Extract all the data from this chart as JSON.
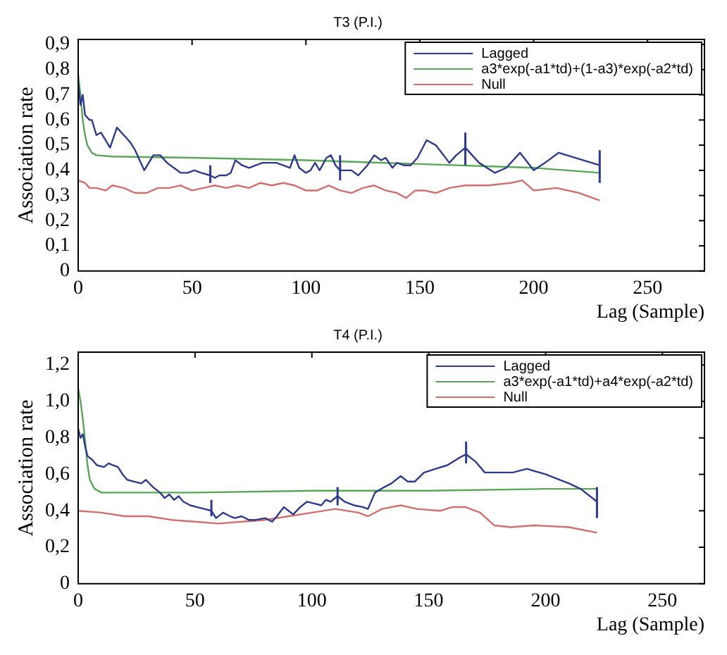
{
  "chart_data": [
    {
      "type": "line",
      "title": "T3 (P.I.)",
      "xlabel": "Lag (Sample)",
      "ylabel": "Association rate",
      "legend": "top right",
      "xlim": [
        0,
        275
      ],
      "xticks": [
        0,
        50,
        100,
        150,
        200,
        250
      ],
      "ylim": [
        0,
        0.92
      ],
      "yticks": [
        0,
        {
          "value": 0.1,
          "label": "0,1"
        },
        {
          "value": 0.2,
          "label": "0,2"
        },
        {
          "value": 0.3,
          "label": "0,3"
        },
        {
          "value": 0.4,
          "label": "0,4"
        },
        {
          "value": 0.5,
          "label": "0,5"
        },
        {
          "value": 0.6,
          "label": "0,6"
        },
        {
          "value": 0.7,
          "label": "0,7"
        },
        {
          "value": 0.8,
          "label": "0,8"
        },
        {
          "value": 0.9,
          "label": "0,9"
        }
      ],
      "series": [
        {
          "name": "Lagged",
          "color": "#2e3a8c",
          "x": [
            0,
            1,
            2,
            3,
            5,
            6,
            8,
            10,
            12,
            14,
            17,
            20,
            23,
            25,
            27,
            29,
            31,
            33,
            36,
            39,
            42,
            45,
            48,
            51,
            54,
            58,
            60,
            62,
            65,
            67,
            69,
            72,
            75,
            78,
            81,
            84,
            87,
            90,
            93,
            95,
            97,
            100,
            102,
            104,
            106,
            109,
            111,
            113,
            115,
            117,
            120,
            123,
            127,
            130,
            133,
            135,
            138,
            140,
            143,
            146,
            149,
            153,
            157,
            163,
            166,
            170,
            176,
            183,
            188,
            194,
            200,
            205,
            211,
            229
          ],
          "values": [
            0.75,
            0.66,
            0.7,
            0.62,
            0.6,
            0.6,
            0.54,
            0.55,
            0.52,
            0.49,
            0.57,
            0.54,
            0.51,
            0.48,
            0.44,
            0.4,
            0.43,
            0.46,
            0.46,
            0.43,
            0.41,
            0.39,
            0.39,
            0.4,
            0.39,
            0.38,
            0.37,
            0.38,
            0.38,
            0.39,
            0.44,
            0.42,
            0.41,
            0.42,
            0.43,
            0.43,
            0.43,
            0.42,
            0.41,
            0.46,
            0.41,
            0.39,
            0.4,
            0.43,
            0.4,
            0.45,
            0.46,
            0.42,
            0.4,
            0.4,
            0.4,
            0.38,
            0.42,
            0.46,
            0.44,
            0.45,
            0.41,
            0.43,
            0.42,
            0.42,
            0.45,
            0.52,
            0.5,
            0.43,
            0.46,
            0.49,
            0.43,
            0.39,
            0.41,
            0.47,
            0.4,
            0.43,
            0.47,
            0.42
          ],
          "errors": [
            null,
            null,
            null,
            null,
            null,
            null,
            null,
            null,
            null,
            null,
            null,
            null,
            null,
            null,
            null,
            null,
            null,
            null,
            null,
            null,
            null,
            null,
            null,
            null,
            null,
            [
              0.35,
              0.42
            ],
            null,
            null,
            null,
            null,
            null,
            null,
            null,
            null,
            null,
            null,
            null,
            null,
            null,
            null,
            null,
            null,
            null,
            null,
            null,
            null,
            null,
            null,
            [
              0.36,
              0.46
            ],
            null,
            null,
            null,
            null,
            null,
            null,
            null,
            null,
            null,
            null,
            null,
            null,
            null,
            null,
            null,
            null,
            [
              0.42,
              0.55
            ],
            null,
            null,
            null,
            null,
            null,
            null,
            null,
            [
              0.35,
              0.48
            ]
          ]
        },
        {
          "name": "a3*exp(-a1*td)+(1-a3)*exp(-a2*td)",
          "color": "#5aa55a",
          "x": [
            0,
            1,
            2,
            3,
            4,
            6,
            8,
            15,
            50,
            100,
            150,
            200,
            229
          ],
          "values": [
            0.78,
            0.7,
            0.6,
            0.54,
            0.5,
            0.47,
            0.46,
            0.455,
            0.45,
            0.44,
            0.425,
            0.41,
            0.39
          ]
        },
        {
          "name": "Null",
          "color": "#d0706e",
          "x": [
            0,
            3,
            5,
            8,
            12,
            15,
            20,
            25,
            30,
            35,
            40,
            45,
            50,
            55,
            60,
            65,
            70,
            75,
            80,
            85,
            90,
            95,
            100,
            105,
            110,
            115,
            120,
            125,
            130,
            135,
            140,
            144,
            148,
            152,
            157,
            163,
            170,
            180,
            190,
            195,
            200,
            210,
            220,
            229
          ],
          "values": [
            0.36,
            0.35,
            0.33,
            0.33,
            0.32,
            0.34,
            0.33,
            0.31,
            0.31,
            0.33,
            0.33,
            0.34,
            0.32,
            0.33,
            0.34,
            0.33,
            0.34,
            0.33,
            0.35,
            0.34,
            0.35,
            0.34,
            0.32,
            0.32,
            0.34,
            0.32,
            0.31,
            0.33,
            0.34,
            0.32,
            0.31,
            0.29,
            0.32,
            0.32,
            0.31,
            0.33,
            0.34,
            0.34,
            0.35,
            0.36,
            0.32,
            0.33,
            0.31,
            0.28
          ]
        }
      ]
    },
    {
      "type": "line",
      "title": "T4 (P.I.)",
      "xlabel": "Lag (Sample)",
      "ylabel": "Association rate",
      "legend": "top right",
      "xlim": [
        0,
        268
      ],
      "xticks": [
        0,
        50,
        100,
        150,
        200,
        250
      ],
      "ylim": [
        0,
        1.27
      ],
      "yticks": [
        0,
        {
          "value": 0.2,
          "label": "0,2"
        },
        {
          "value": 0.4,
          "label": "0,4"
        },
        {
          "value": 0.6,
          "label": "0,6"
        },
        {
          "value": 0.8,
          "label": "0,8"
        },
        {
          "value": 1.0,
          "label": "1,0"
        },
        {
          "value": 1.2,
          "label": "1,2"
        }
      ],
      "series": [
        {
          "name": "Lagged",
          "color": "#2e3a8c",
          "x": [
            0,
            1,
            2,
            3,
            4,
            6,
            8,
            11,
            13,
            15,
            17,
            19,
            21,
            24,
            27,
            29,
            32,
            35,
            37,
            39,
            41,
            43,
            45,
            48,
            51,
            54,
            57,
            59,
            62,
            65,
            67,
            70,
            73,
            76,
            80,
            83,
            85,
            88,
            90,
            92,
            95,
            98,
            101,
            104,
            106,
            108,
            111,
            114,
            118,
            122,
            124,
            127,
            131,
            134,
            138,
            141,
            144,
            148,
            153,
            158,
            163,
            166,
            170,
            174,
            180,
            186,
            192,
            200,
            210,
            215,
            222
          ],
          "values": [
            0.85,
            0.8,
            0.82,
            0.75,
            0.7,
            0.68,
            0.65,
            0.64,
            0.66,
            0.65,
            0.64,
            0.6,
            0.57,
            0.56,
            0.55,
            0.57,
            0.53,
            0.5,
            0.47,
            0.49,
            0.46,
            0.48,
            0.45,
            0.43,
            0.42,
            0.41,
            0.4,
            0.36,
            0.39,
            0.37,
            0.36,
            0.37,
            0.35,
            0.35,
            0.36,
            0.34,
            0.37,
            0.42,
            0.4,
            0.38,
            0.42,
            0.45,
            0.44,
            0.43,
            0.46,
            0.45,
            0.48,
            0.45,
            0.43,
            0.42,
            0.41,
            0.5,
            0.53,
            0.55,
            0.59,
            0.56,
            0.56,
            0.61,
            0.63,
            0.65,
            0.69,
            0.71,
            0.67,
            0.61,
            0.61,
            0.61,
            0.63,
            0.6,
            0.55,
            0.52,
            0.45
          ],
          "errors": [
            null,
            null,
            null,
            null,
            null,
            null,
            null,
            null,
            null,
            null,
            null,
            null,
            null,
            null,
            null,
            null,
            null,
            null,
            null,
            null,
            null,
            null,
            null,
            null,
            null,
            null,
            [
              0.37,
              0.46
            ],
            null,
            null,
            null,
            null,
            null,
            null,
            null,
            null,
            null,
            null,
            null,
            null,
            null,
            null,
            null,
            null,
            null,
            null,
            null,
            [
              0.43,
              0.53
            ],
            null,
            null,
            null,
            null,
            null,
            null,
            null,
            null,
            null,
            null,
            null,
            null,
            null,
            null,
            [
              0.66,
              0.78
            ],
            null,
            null,
            null,
            null,
            null,
            null,
            null,
            null,
            [
              0.36,
              0.53
            ]
          ]
        },
        {
          "name": "a3*exp(-a1*td)+a4*exp(-a2*td)",
          "color": "#5aa55a",
          "x": [
            0,
            1,
            2,
            3,
            4,
            5,
            7,
            10,
            20,
            50,
            100,
            150,
            200,
            222
          ],
          "values": [
            1.07,
            1.0,
            0.9,
            0.78,
            0.65,
            0.57,
            0.52,
            0.5,
            0.5,
            0.5,
            0.51,
            0.51,
            0.52,
            0.52
          ]
        },
        {
          "name": "Null",
          "color": "#d0706e",
          "x": [
            0,
            10,
            20,
            30,
            40,
            50,
            60,
            70,
            80,
            90,
            100,
            110,
            120,
            124,
            130,
            138,
            145,
            155,
            160,
            166,
            172,
            178,
            185,
            195,
            210,
            222
          ],
          "values": [
            0.4,
            0.39,
            0.37,
            0.37,
            0.35,
            0.34,
            0.33,
            0.34,
            0.35,
            0.37,
            0.39,
            0.41,
            0.39,
            0.37,
            0.41,
            0.43,
            0.41,
            0.4,
            0.42,
            0.42,
            0.39,
            0.32,
            0.31,
            0.32,
            0.31,
            0.28
          ]
        }
      ]
    }
  ]
}
